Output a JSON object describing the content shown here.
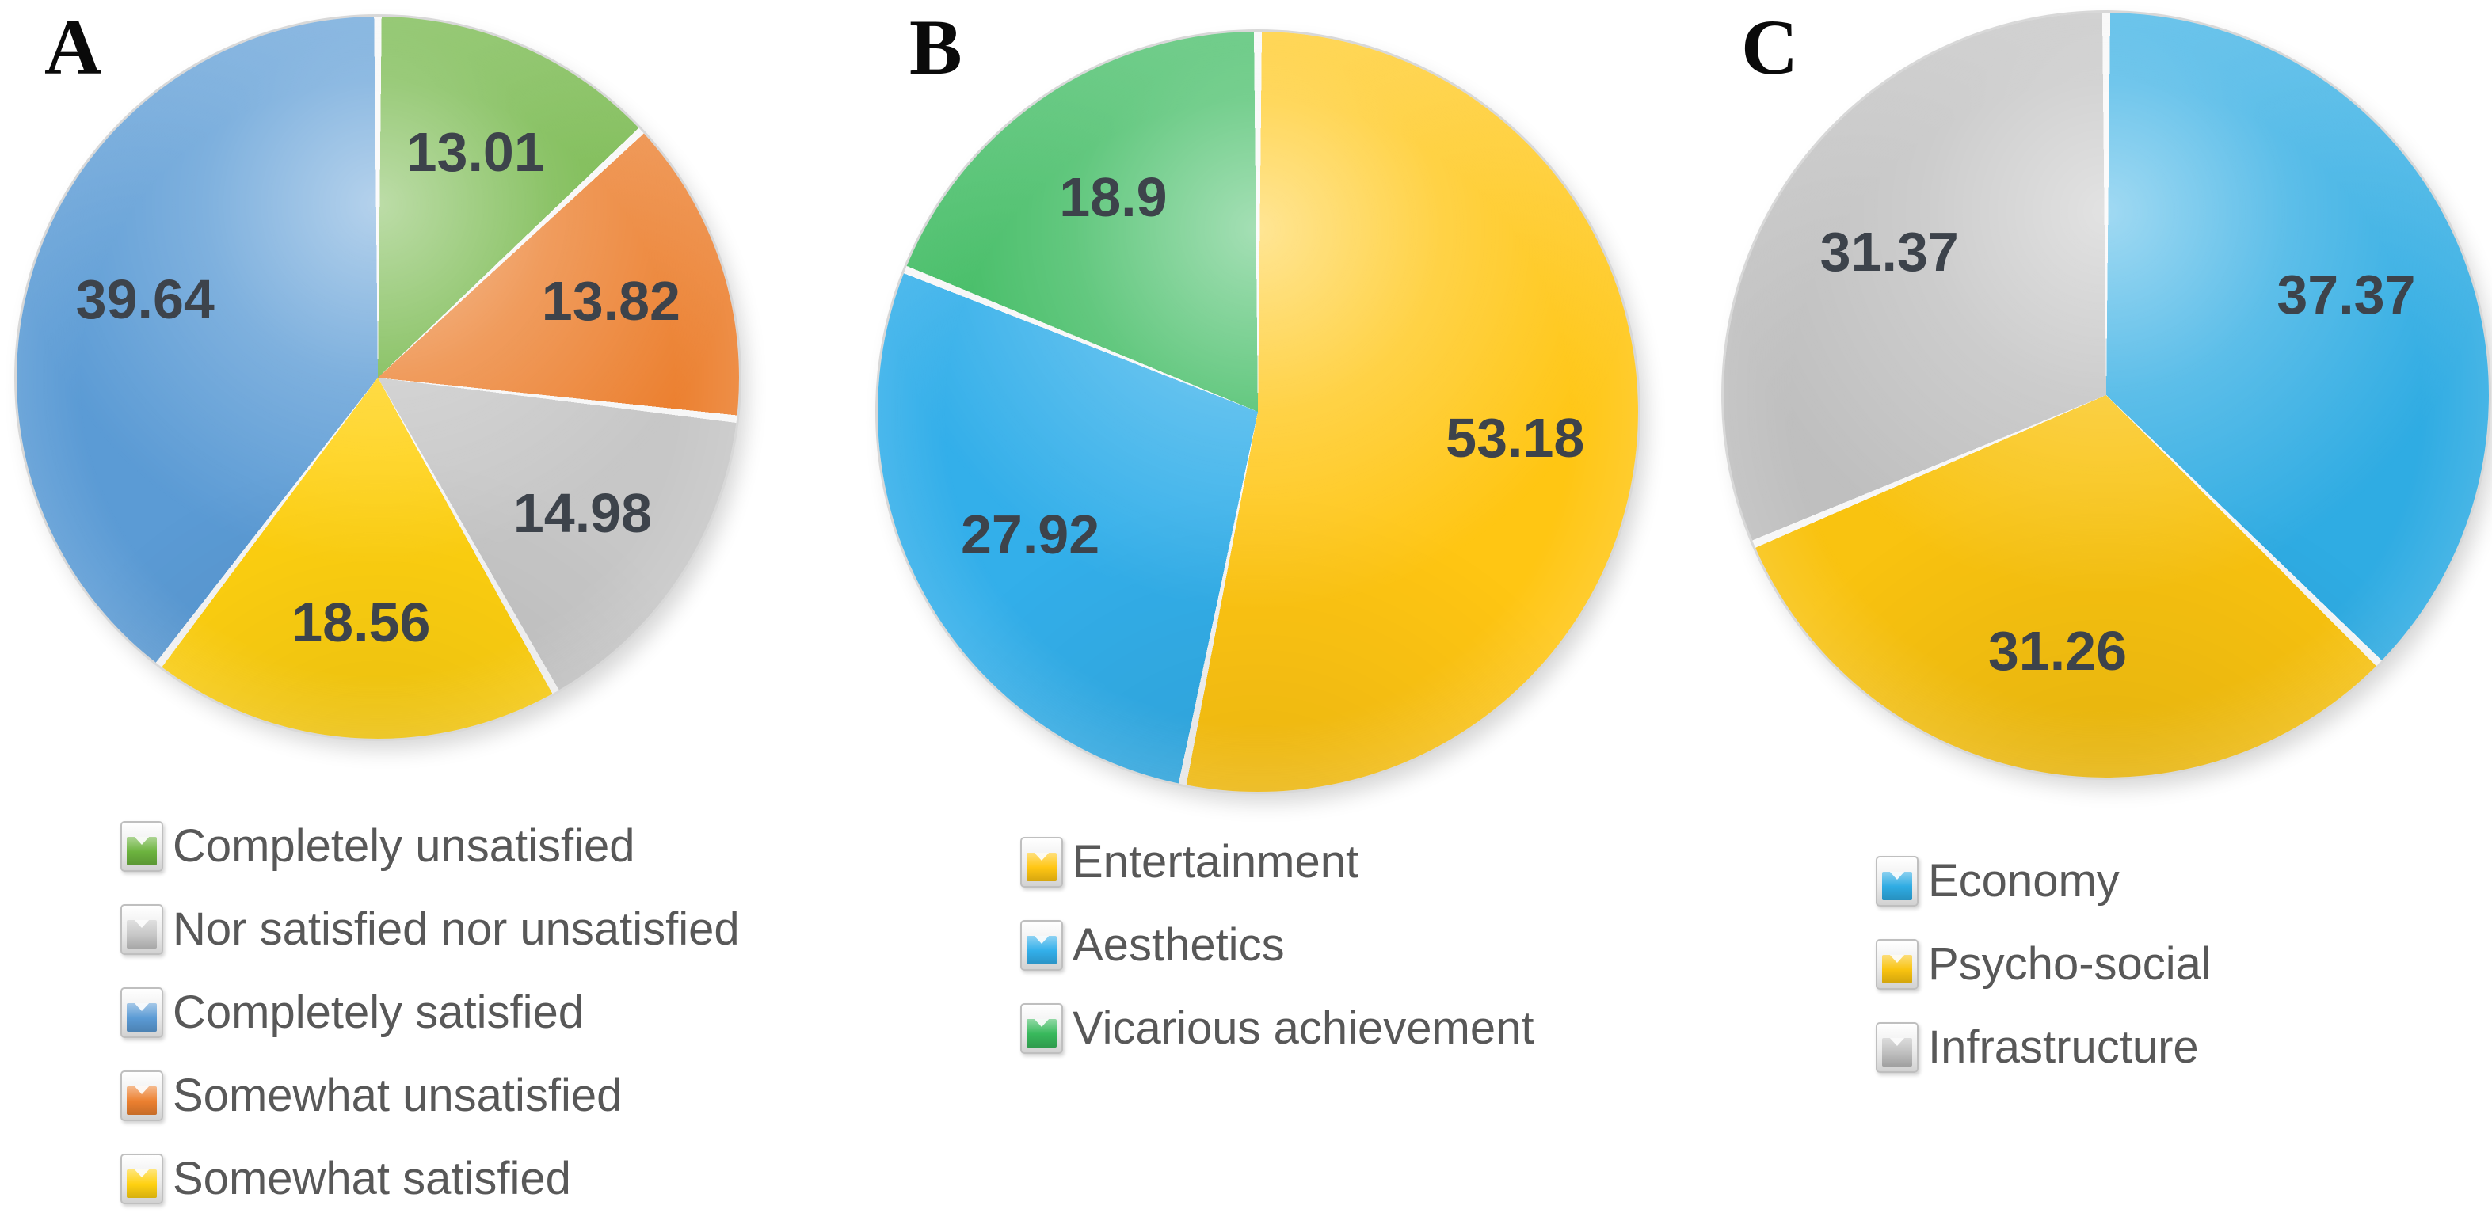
{
  "figure": {
    "panel_letters": [
      "A",
      "B",
      "C"
    ],
    "background_color": "#ffffff"
  },
  "text_colors": {
    "panel_letter": "#0a0a0a",
    "data_label": "#3D434B",
    "legend_label": "#585858"
  },
  "chart_data": [
    {
      "type": "pie",
      "panel": "A",
      "labels": [
        "Completely unsatisfied",
        "Somewhat unsatisfied",
        "Nor satisfied nor unsatisfied",
        "Somewhat satisfied",
        "Completely satisfied"
      ],
      "values": [
        13.01,
        13.82,
        14.98,
        18.56,
        39.64
      ],
      "colors": [
        "#6CB33E",
        "#EC8030",
        "#C7C7C7",
        "#FFD111",
        "#5B9BD5"
      ],
      "data_labels": [
        "13.01",
        "13.82",
        "14.98",
        "18.56",
        "39.64"
      ],
      "legend": [
        "Completely unsatisfied",
        "Nor satisfied nor unsatisfied",
        "Completely satisfied",
        "Somewhat unsatisfied",
        "Somewhat satisfied"
      ],
      "start_angle_deg": 0,
      "direction": "clockwise",
      "legend_position": "below-left"
    },
    {
      "type": "pie",
      "panel": "B",
      "labels": [
        "Entertainment",
        "Aesthetics",
        "Vicarious achievement"
      ],
      "values": [
        53.18,
        27.92,
        18.9
      ],
      "colors": [
        "#FFC613",
        "#33AFEA",
        "#38B95C"
      ],
      "data_labels": [
        "53.18",
        "27.92",
        "18.9"
      ],
      "legend": [
        "Entertainment",
        "Aesthetics",
        "Vicarious achievement"
      ],
      "start_angle_deg": 0,
      "direction": "clockwise",
      "legend_position": "below-left"
    },
    {
      "type": "pie",
      "panel": "C",
      "labels": [
        "Economy",
        "Psycho-social",
        "Infrastructure"
      ],
      "values": [
        37.37,
        31.26,
        31.37
      ],
      "colors": [
        "#2FACE3",
        "#F9C310",
        "#BFBFBF"
      ],
      "data_labels": [
        "37.37",
        "31.26",
        "31.37"
      ],
      "legend": [
        "Economy",
        "Psycho-social",
        "Infrastructure"
      ],
      "start_angle_deg": 0,
      "direction": "clockwise",
      "legend_position": "below-left"
    }
  ]
}
